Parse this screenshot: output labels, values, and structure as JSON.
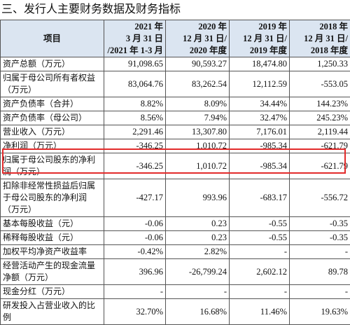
{
  "title": "三、发行人主要财务数据及财务指标",
  "table": {
    "header": [
      "项目",
      "2021 年\n3 月 31 日\n/2021 年 1-3 月",
      "2020 年\n12 月 31 日/\n2020 年度",
      "2019 年\n12 月 31 日/\n2019 年度",
      "2018 年\n12 月 31 日/\n2018 年度"
    ],
    "rows": [
      [
        "资产总额（万元）",
        "91,098.65",
        "90,593.27",
        "18,474.80",
        "1,250.33"
      ],
      [
        "归属于母公司所有者权益（万元）",
        "83,064.76",
        "83,262.54",
        "12,112.59",
        "-553.05"
      ],
      [
        "资产负债率（合并）",
        "8.82%",
        "8.09%",
        "34.44%",
        "144.23%"
      ],
      [
        "资产负债率（母公司）",
        "8.56%",
        "7.94%",
        "32.47%",
        "245.23%"
      ],
      [
        "营业收入（万元）",
        "2,291.46",
        "13,307.80",
        "7,176.01",
        "2,119.44"
      ],
      [
        "净利润（万元）",
        "-346.25",
        "1,010.72",
        "-985.34",
        "-621.79"
      ],
      [
        "归属于母公司股东的净利润（万元）",
        "-346.25",
        "1,010.72",
        "-985.34",
        "-621.79"
      ],
      [
        "扣除非经常性损益后归属于母公司股东的净利润（万元）",
        "-427.17",
        "993.96",
        "-683.17",
        "-556.72"
      ],
      [
        "基本每股收益（元）",
        "-0.06",
        "0.23",
        "-0.55",
        "-0.35"
      ],
      [
        "稀释每股收益（元）",
        "-0.06",
        "0.23",
        "-0.55",
        "-0.35"
      ],
      [
        "加权平均净资产收益率",
        "-0.42%",
        "2.82%",
        "-",
        "-"
      ],
      [
        "经营活动产生的现金流量净额（万元）",
        "396.96",
        "-26,799.24",
        "2,602.12",
        "89.78"
      ],
      [
        "现金分红（万元）",
        "-",
        "-",
        "-",
        "-"
      ],
      [
        "研发投入占营业收入的比例",
        "32.70%",
        "16.68%",
        "11.46%",
        "19.63%"
      ]
    ]
  }
}
